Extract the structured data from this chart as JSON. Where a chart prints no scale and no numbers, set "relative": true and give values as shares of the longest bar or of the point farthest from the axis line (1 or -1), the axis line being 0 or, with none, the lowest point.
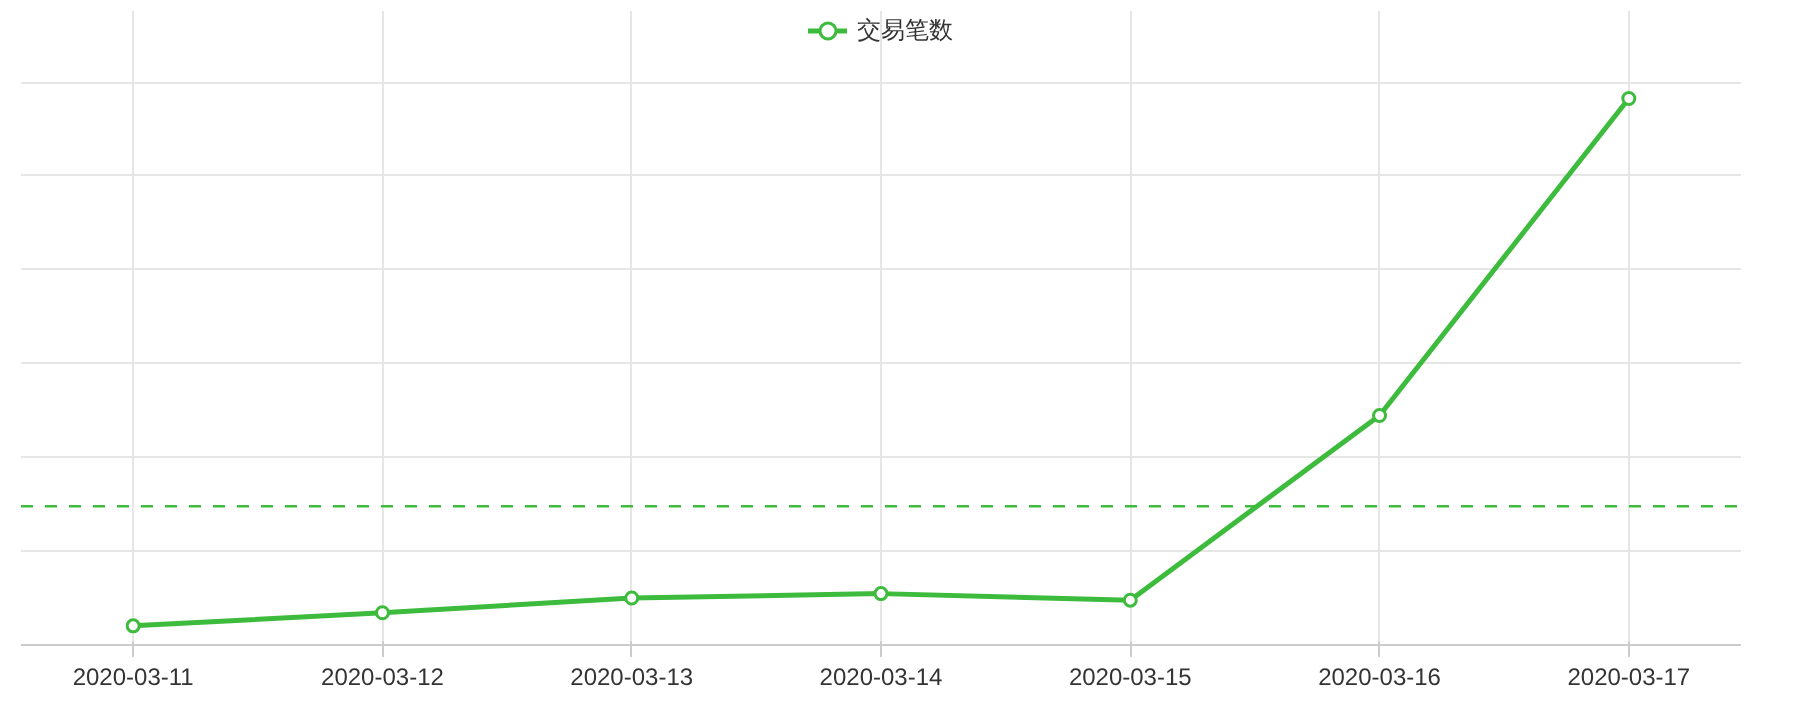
{
  "chart_data": {
    "type": "line",
    "relative": true,
    "categories": [
      "2020-03-11",
      "2020-03-12",
      "2020-03-13",
      "2020-03-14",
      "2020-03-15",
      "2020-03-16",
      "2020-03-17"
    ],
    "series": [
      {
        "name": "交易笔数",
        "color": "#3dbb3d",
        "values": [
          0.035,
          0.059,
          0.086,
          0.094,
          0.082,
          0.42,
          1
        ]
      }
    ],
    "ref_lines": [
      {
        "axis": "y",
        "value": 0.254,
        "color": "#3dbb3d",
        "line_style": "dashed"
      }
    ],
    "grid": true,
    "legend": "top",
    "marker": "circle",
    "line_style": "solid"
  }
}
